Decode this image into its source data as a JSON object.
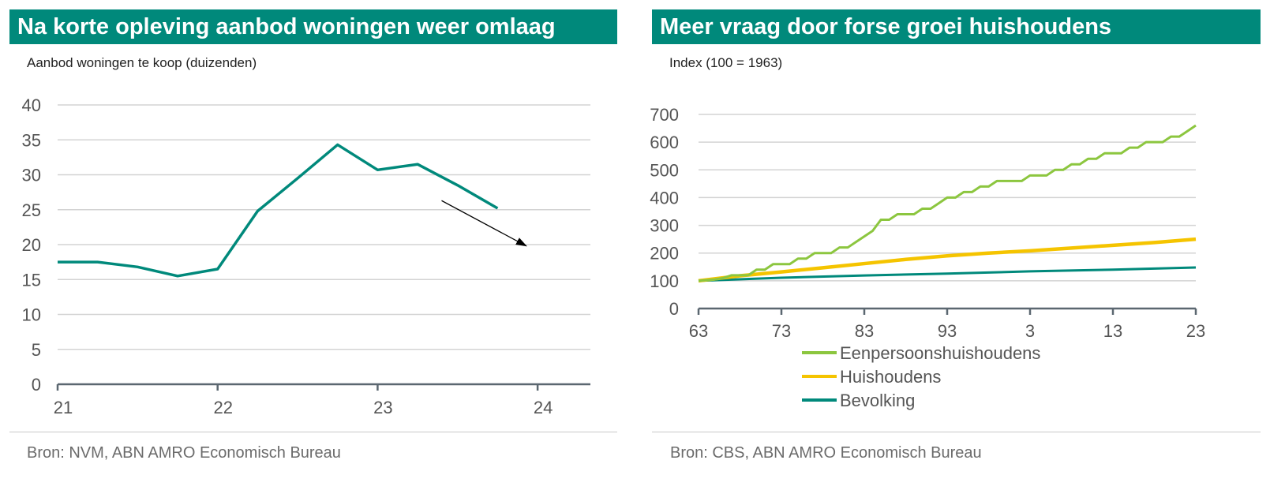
{
  "left": {
    "title": "Na korte opleving aanbod woningen weer omlaag",
    "source": "Bron: NVM, ABN AMRO Economisch Bureau"
  },
  "right": {
    "title": "Meer vraag door forse groei huishoudens",
    "source": "Bron: CBS, ABN AMRO Economisch Bureau"
  },
  "colors": {
    "banner": "#00897b",
    "teal": "#00897b",
    "green": "#8cc63f",
    "yellow": "#f5c400"
  },
  "chart_data": [
    {
      "type": "line",
      "title": "Na korte opleving aanbod woningen weer omlaag",
      "ylabel": "Aanbod woningen te koop (duizenden)",
      "xlabel": "",
      "x_ticks": [
        21,
        22,
        23,
        24
      ],
      "xlim": [
        21,
        24.33
      ],
      "ylim": [
        0,
        40
      ],
      "y_ticks": [
        0,
        5,
        10,
        15,
        20,
        25,
        30,
        35,
        40
      ],
      "grid": true,
      "series": [
        {
          "color": "#00897b",
          "x": [
            21.0,
            21.25,
            21.5,
            21.75,
            22.0,
            22.25,
            22.5,
            22.75,
            23.0,
            23.25,
            23.5,
            23.75
          ],
          "values": [
            17.5,
            17.5,
            16.8,
            15.5,
            16.5,
            24.8,
            29.5,
            34.3,
            30.7,
            31.5,
            28.5,
            25.2
          ]
        }
      ],
      "annotations": [
        {
          "type": "arrow",
          "from": [
            23.4,
            26.3
          ],
          "to": [
            23.93,
            19.8
          ]
        }
      ]
    },
    {
      "type": "line",
      "title": "Meer vraag door forse groei huishoudens",
      "ylabel": "Index (100 = 1963)",
      "xlabel": "",
      "x_ticks": [
        1963,
        1973,
        1983,
        1993,
        2003,
        2013,
        2023
      ],
      "x_tick_labels": [
        "63",
        "73",
        "83",
        "93",
        "3",
        "13",
        "23"
      ],
      "xlim": [
        1963,
        2023
      ],
      "ylim": [
        0,
        700
      ],
      "y_ticks": [
        0,
        100,
        200,
        300,
        400,
        500,
        600,
        700
      ],
      "grid": true,
      "legend": "bottom",
      "series": [
        {
          "name": "Eenpersoonshuishoudens",
          "color": "#8cc63f",
          "x": [
            1963,
            1965,
            1966,
            1967,
            1968,
            1969,
            1970,
            1971,
            1972,
            1973,
            1974,
            1975,
            1976,
            1977,
            1978,
            1979,
            1980,
            1981,
            1982,
            1983,
            1984,
            1985,
            1986,
            1987,
            1988,
            1989,
            1990,
            1991,
            1992,
            1993,
            1994,
            1995,
            1996,
            1997,
            1998,
            1999,
            2000,
            2001,
            2002,
            2003,
            2004,
            2005,
            2006,
            2007,
            2008,
            2009,
            2010,
            2011,
            2012,
            2013,
            2014,
            2015,
            2016,
            2017,
            2018,
            2019,
            2020,
            2021,
            2022,
            2023
          ],
          "values": [
            100,
            105,
            110,
            120,
            120,
            120,
            140,
            140,
            160,
            160,
            160,
            180,
            180,
            200,
            200,
            200,
            220,
            220,
            240,
            260,
            280,
            320,
            320,
            340,
            340,
            340,
            360,
            360,
            380,
            400,
            400,
            420,
            420,
            440,
            440,
            460,
            460,
            460,
            460,
            480,
            480,
            480,
            500,
            500,
            520,
            520,
            540,
            540,
            560,
            560,
            560,
            580,
            580,
            600,
            600,
            600,
            620,
            620,
            640,
            660
          ]
        },
        {
          "name": "Huishoudens",
          "color": "#f5c400",
          "x": [
            1963,
            1968,
            1973,
            1978,
            1983,
            1988,
            1993,
            1998,
            2003,
            2008,
            2013,
            2018,
            2023
          ],
          "values": [
            100,
            118,
            132,
            147,
            162,
            177,
            190,
            200,
            208,
            218,
            228,
            238,
            250
          ]
        },
        {
          "name": "Bevolking",
          "color": "#00897b",
          "x": [
            1963,
            1973,
            1983,
            1993,
            2003,
            2013,
            2023
          ],
          "values": [
            100,
            111,
            119,
            126,
            134,
            140,
            148
          ]
        }
      ]
    }
  ]
}
